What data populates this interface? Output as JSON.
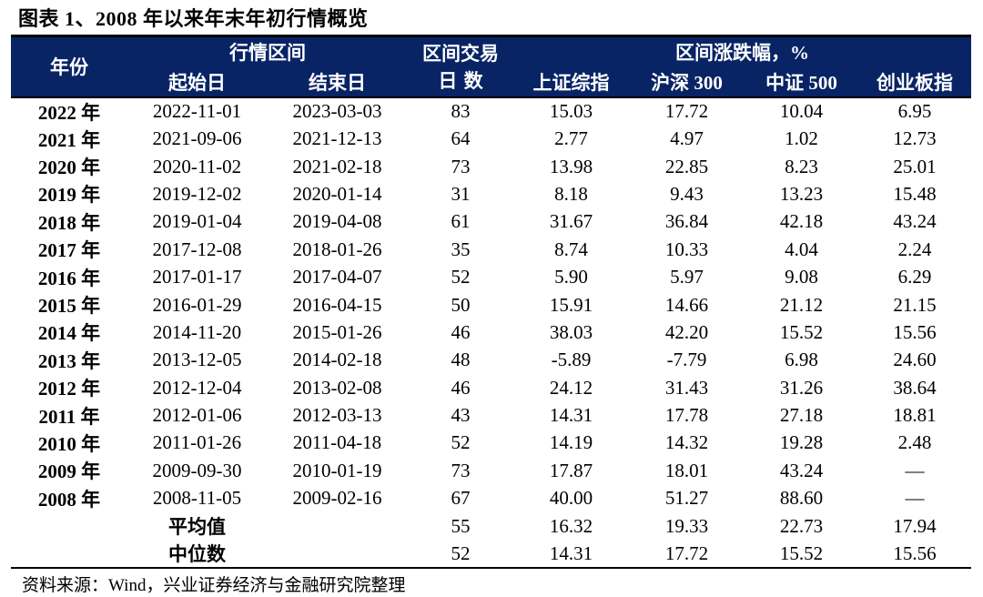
{
  "figure": {
    "title": "图表 1、2008 年以来年末年初行情概览",
    "source": "资料来源：Wind，兴业证券经济与金融研究院整理"
  },
  "colors": {
    "header_bg": "#082465",
    "header_text": "#ffffff",
    "body_text": "#000000",
    "border": "#000000"
  },
  "header": {
    "year": "年份",
    "interval_group": "行情区间",
    "start_date": "起始日",
    "end_date": "结束日",
    "trading_days_line1": "区间交易",
    "trading_days_line2": "日数",
    "change_group": "区间涨跌幅，%",
    "sse": "上证综指",
    "csi300": "沪深 300",
    "csi500": "中证 500",
    "chinext": "创业板指"
  },
  "chart_data": {
    "type": "table",
    "title": "图表 1、2008 年以来年末年初行情概览",
    "column_groups": [
      "年份",
      "行情区间",
      "区间交易日数",
      "区间涨跌幅，%"
    ],
    "columns": [
      "年份",
      "起始日",
      "结束日",
      "区间交易日数",
      "上证综指",
      "沪深 300",
      "中证 500",
      "创业板指"
    ],
    "rows": [
      [
        "2022 年",
        "2022-11-01",
        "2023-03-03",
        "83",
        "15.03",
        "17.72",
        "10.04",
        "6.95"
      ],
      [
        "2021 年",
        "2021-09-06",
        "2021-12-13",
        "64",
        "2.77",
        "4.97",
        "1.02",
        "12.73"
      ],
      [
        "2020 年",
        "2020-11-02",
        "2021-02-18",
        "73",
        "13.98",
        "22.85",
        "8.23",
        "25.01"
      ],
      [
        "2019 年",
        "2019-12-02",
        "2020-01-14",
        "31",
        "8.18",
        "9.43",
        "13.23",
        "15.48"
      ],
      [
        "2018 年",
        "2019-01-04",
        "2019-04-08",
        "61",
        "31.67",
        "36.84",
        "42.18",
        "43.24"
      ],
      [
        "2017 年",
        "2017-12-08",
        "2018-01-26",
        "35",
        "8.74",
        "10.33",
        "4.04",
        "2.24"
      ],
      [
        "2016 年",
        "2017-01-17",
        "2017-04-07",
        "52",
        "5.90",
        "5.97",
        "9.08",
        "6.29"
      ],
      [
        "2015 年",
        "2016-01-29",
        "2016-04-15",
        "50",
        "15.91",
        "14.66",
        "21.12",
        "21.15"
      ],
      [
        "2014 年",
        "2014-11-20",
        "2015-01-26",
        "46",
        "38.03",
        "42.20",
        "15.52",
        "15.56"
      ],
      [
        "2013 年",
        "2013-12-05",
        "2014-02-18",
        "48",
        "-5.89",
        "-7.79",
        "6.98",
        "24.60"
      ],
      [
        "2012 年",
        "2012-12-04",
        "2013-02-08",
        "46",
        "24.12",
        "31.43",
        "31.26",
        "38.64"
      ],
      [
        "2011 年",
        "2012-01-06",
        "2012-03-13",
        "43",
        "14.31",
        "17.78",
        "27.18",
        "18.81"
      ],
      [
        "2010 年",
        "2011-01-26",
        "2011-04-18",
        "52",
        "14.19",
        "14.32",
        "19.28",
        "2.48"
      ],
      [
        "2009 年",
        "2009-09-30",
        "2010-01-19",
        "73",
        "17.87",
        "18.01",
        "43.24",
        "—"
      ],
      [
        "2008 年",
        "2008-11-05",
        "2009-02-16",
        "67",
        "40.00",
        "51.27",
        "88.60",
        "—"
      ]
    ],
    "summary_rows": [
      [
        "平均值",
        "55",
        "16.32",
        "19.33",
        "22.73",
        "17.94"
      ],
      [
        "中位数",
        "52",
        "14.31",
        "17.72",
        "15.52",
        "15.56"
      ]
    ]
  }
}
